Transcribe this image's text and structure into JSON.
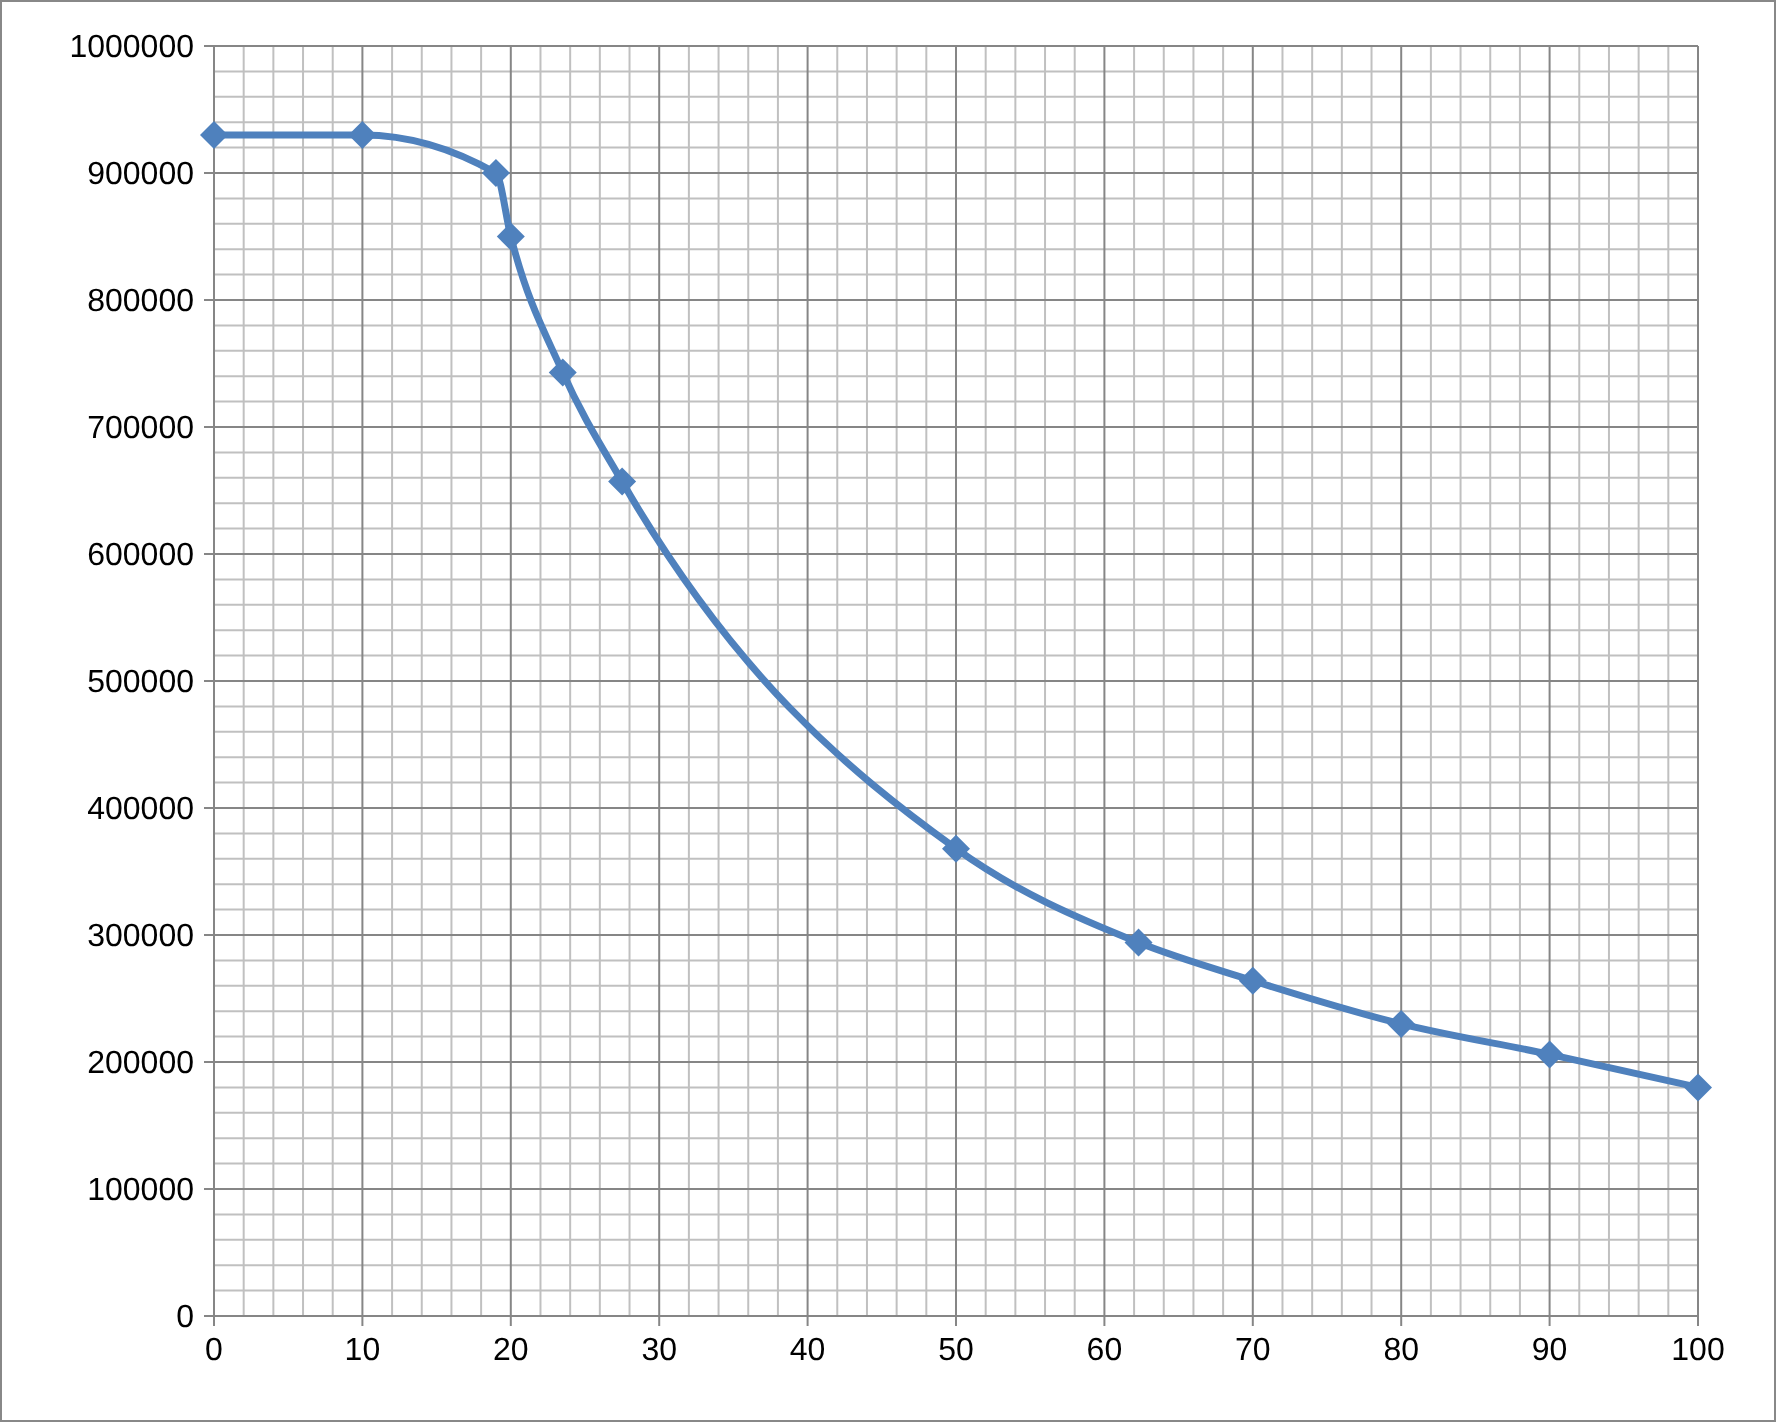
{
  "chart_data": {
    "type": "line",
    "x": [
      0,
      10,
      19,
      20,
      23.5,
      27.5,
      50,
      62.3,
      70,
      80,
      90,
      100
    ],
    "series": [
      {
        "color": "#4f81bd",
        "values": [
          930000,
          930000,
          900000,
          850000,
          743000,
          657000,
          368000,
          294000,
          264000,
          230000,
          206000,
          180000
        ]
      }
    ],
    "xlim": [
      0,
      100
    ],
    "xticks": [
      0,
      10,
      20,
      30,
      40,
      50,
      60,
      70,
      80,
      90,
      100
    ],
    "ylim": [
      0,
      1000000
    ],
    "yticks": [
      0,
      100000,
      200000,
      300000,
      400000,
      500000,
      600000,
      700000,
      800000,
      900000,
      1000000
    ],
    "grid": true,
    "marker": "diamond",
    "line_style": "solid"
  }
}
